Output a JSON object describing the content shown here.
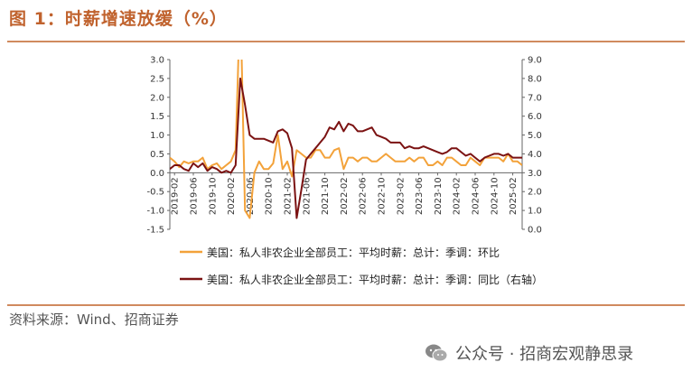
{
  "figure_title": "图 1：时薪增速放缓（%）",
  "source": "资料来源：Wind、招商证券",
  "brand": "公众号 · 招商宏观静思录",
  "colors": {
    "title": "#c0622d",
    "rule": "#d08a5e",
    "mom": "#f3a23a",
    "yoy": "#7b1212"
  },
  "icons": {
    "brand": "wechat-icon"
  },
  "chart_data": {
    "type": "line",
    "title": "",
    "left_axis": {
      "ylim": [
        -1.5,
        3.0
      ],
      "ticks": [
        "3.0",
        "2.5",
        "2.0",
        "1.5",
        "1.0",
        "0.5",
        "0.0",
        "-0.5",
        "-1.0",
        "-1.5"
      ]
    },
    "right_axis": {
      "ylim": [
        0.0,
        9.0
      ],
      "ticks": [
        "9.0",
        "8.0",
        "7.0",
        "6.0",
        "5.0",
        "4.0",
        "3.0",
        "2.0",
        "1.0",
        "0.0"
      ]
    },
    "x_ticks": [
      "2019-02",
      "2019-06",
      "2019-10",
      "2020-02",
      "2020-06",
      "2020-10",
      "2021-02",
      "2021-06",
      "2021-10",
      "2022-02",
      "2022-06",
      "2022-10",
      "2023-02",
      "2023-06",
      "2023-10",
      "2024-02",
      "2024-06",
      "2024-10",
      "2025-02"
    ],
    "x": [
      "2019-01",
      "2019-02",
      "2019-03",
      "2019-04",
      "2019-05",
      "2019-06",
      "2019-07",
      "2019-08",
      "2019-09",
      "2019-10",
      "2019-11",
      "2019-12",
      "2020-01",
      "2020-02",
      "2020-03",
      "2020-04",
      "2020-05",
      "2020-06",
      "2020-07",
      "2020-08",
      "2020-09",
      "2020-10",
      "2020-11",
      "2020-12",
      "2021-01",
      "2021-02",
      "2021-03",
      "2021-04",
      "2021-05",
      "2021-06",
      "2021-07",
      "2021-08",
      "2021-09",
      "2021-10",
      "2021-11",
      "2021-12",
      "2022-01",
      "2022-02",
      "2022-03",
      "2022-04",
      "2022-05",
      "2022-06",
      "2022-07",
      "2022-08",
      "2022-09",
      "2022-10",
      "2022-11",
      "2022-12",
      "2023-01",
      "2023-02",
      "2023-03",
      "2023-04",
      "2023-05",
      "2023-06",
      "2023-07",
      "2023-08",
      "2023-09",
      "2023-10",
      "2023-11",
      "2023-12",
      "2024-01",
      "2024-02",
      "2024-03",
      "2024-04",
      "2024-05",
      "2024-06",
      "2024-07",
      "2024-08",
      "2024-09",
      "2024-10",
      "2024-11",
      "2024-12",
      "2025-01",
      "2025-02",
      "2025-03",
      "2025-04"
    ],
    "series": [
      {
        "name": "美国：私人非农企业全部员工：平均时薪：总计：季调：环比",
        "axis": "left",
        "values": [
          0.4,
          0.3,
          0.15,
          0.3,
          0.25,
          0.3,
          0.3,
          0.4,
          0.1,
          0.2,
          0.25,
          0.1,
          0.2,
          0.3,
          0.6,
          4.7,
          -1.0,
          -1.2,
          0.0,
          0.3,
          0.1,
          0.1,
          0.25,
          1.0,
          0.1,
          0.3,
          -0.1,
          0.6,
          0.5,
          0.4,
          0.4,
          0.6,
          0.6,
          0.4,
          0.4,
          0.6,
          0.65,
          0.1,
          0.4,
          0.4,
          0.3,
          0.4,
          0.4,
          0.3,
          0.3,
          0.4,
          0.5,
          0.4,
          0.3,
          0.3,
          0.3,
          0.4,
          0.3,
          0.4,
          0.4,
          0.2,
          0.2,
          0.3,
          0.2,
          0.4,
          0.4,
          0.3,
          0.2,
          0.2,
          0.4,
          0.3,
          0.2,
          0.4,
          0.4,
          0.4,
          0.4,
          0.3,
          0.5,
          0.3,
          0.3,
          0.2
        ]
      },
      {
        "name": "美国：私人非农企业全部员工：平均时薪：总计：季调：同比（右轴）",
        "axis": "right",
        "values": [
          3.2,
          3.4,
          3.4,
          3.2,
          3.1,
          3.5,
          3.3,
          3.5,
          3.1,
          3.3,
          3.2,
          3.0,
          3.1,
          3.0,
          3.4,
          8.0,
          6.6,
          5.0,
          4.8,
          4.8,
          4.8,
          4.7,
          4.6,
          5.2,
          5.3,
          5.1,
          4.3,
          0.6,
          2.1,
          3.7,
          4.0,
          4.3,
          4.6,
          4.9,
          5.4,
          5.3,
          5.7,
          5.2,
          5.6,
          5.5,
          5.2,
          5.2,
          5.3,
          5.4,
          5.0,
          4.9,
          4.8,
          4.6,
          4.6,
          4.6,
          4.3,
          4.4,
          4.3,
          4.3,
          4.4,
          4.3,
          4.2,
          4.1,
          4.0,
          4.1,
          4.3,
          4.3,
          4.1,
          3.9,
          4.0,
          3.8,
          3.6,
          3.8,
          3.9,
          4.0,
          4.0,
          3.9,
          4.0,
          3.8,
          3.8,
          3.8
        ]
      }
    ],
    "legend_placement": "bottom",
    "grid": false
  }
}
